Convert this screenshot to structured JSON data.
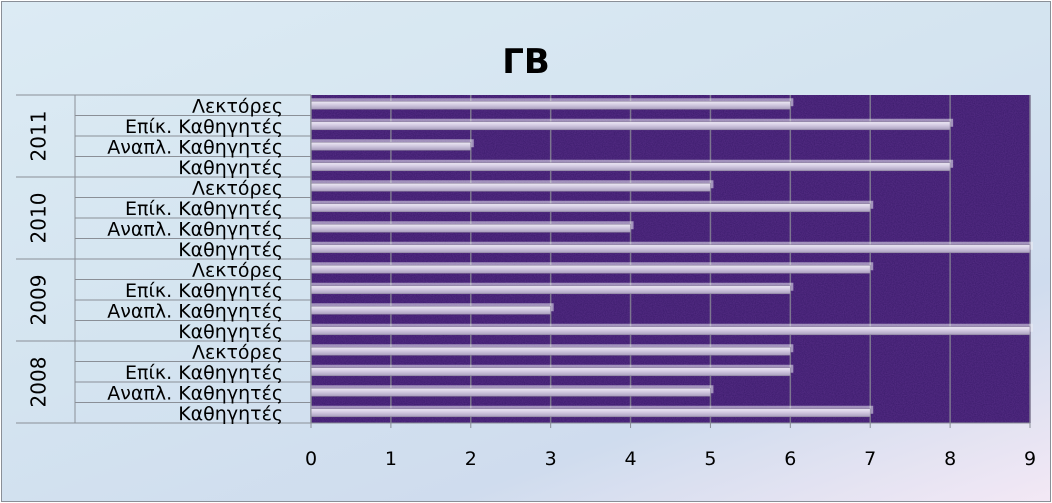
{
  "chart_data": {
    "type": "bar",
    "orientation": "horizontal",
    "title": "ΓΒ",
    "xlabel": "",
    "ylabel": "",
    "xlim": [
      0,
      9
    ],
    "x_ticks": [
      "0",
      "1",
      "2",
      "3",
      "4",
      "5",
      "6",
      "7",
      "8",
      "9"
    ],
    "grid": true,
    "legend": "none",
    "groups": [
      {
        "name": "2011",
        "categories": [
          "Λεκτόρες",
          "Επίκ. Καθηγητές",
          "Αναπλ. Καθηγητές",
          "Καθηγητές"
        ],
        "values": [
          6,
          8,
          2,
          8
        ]
      },
      {
        "name": "2010",
        "categories": [
          "Λεκτόρες",
          "Επίκ. Καθηγητές",
          "Αναπλ. Καθηγητές",
          "Καθηγητές"
        ],
        "values": [
          5,
          7,
          4,
          9
        ]
      },
      {
        "name": "2009",
        "categories": [
          "Λεκτόρες",
          "Επίκ. Καθηγητές",
          "Αναπλ. Καθηγητές",
          "Καθηγητές"
        ],
        "values": [
          7,
          6,
          3,
          9
        ]
      },
      {
        "name": "2008",
        "categories": [
          "Λεκτόρες",
          "Επίκ. Καθηγητές",
          "Αναπλ. Καθηγητές",
          "Καθηγητές"
        ],
        "values": [
          6,
          6,
          5,
          7
        ]
      }
    ],
    "colors": {
      "plot_background": "#3a1a6a",
      "bar_fill": "#c9c1d8",
      "bar_shadow": "#ececf4",
      "gridline": "#7d7690",
      "text": "#000000"
    }
  }
}
